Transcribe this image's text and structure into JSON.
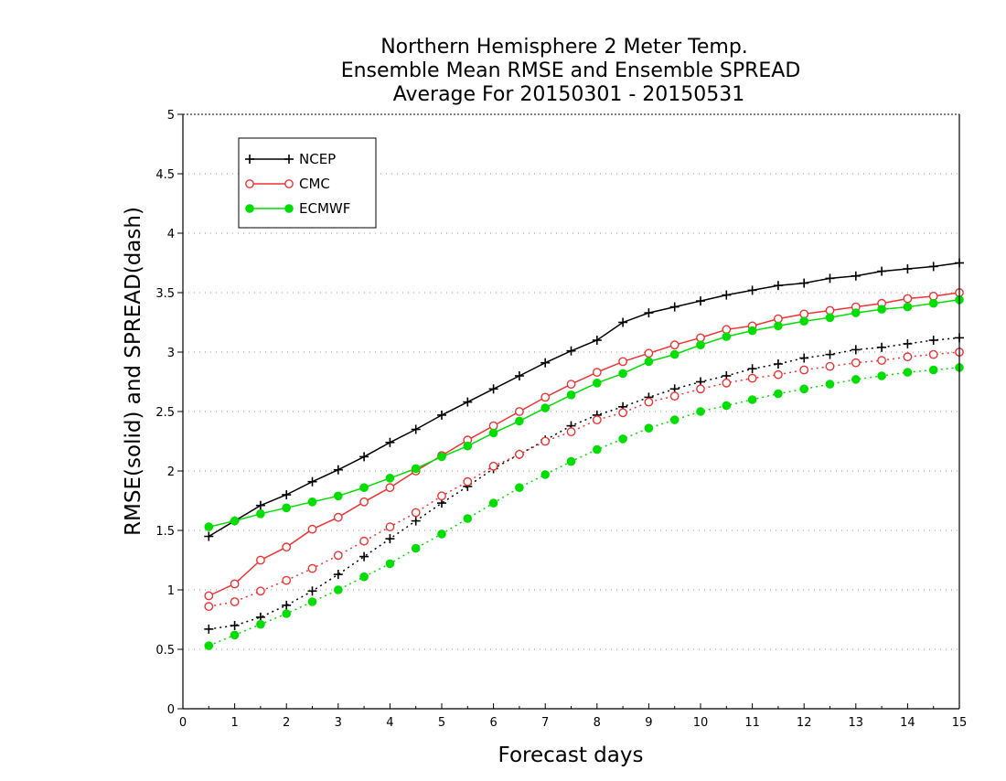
{
  "chart_data": {
    "type": "line",
    "title_lines": [
      "Northern Hemisphere 2 Meter Temp.",
      "Ensemble Mean RMSE and Ensemble SPREAD",
      "Average For 20150301 - 20150531"
    ],
    "xlabel": "Forecast days",
    "ylabel": "RMSE(solid) and SPREAD(dash)",
    "xlim": [
      0,
      15
    ],
    "ylim": [
      0,
      5
    ],
    "x_ticks": [
      "0",
      "1",
      "2",
      "3",
      "4",
      "5",
      "6",
      "7",
      "8",
      "9",
      "10",
      "11",
      "12",
      "13",
      "14",
      "15"
    ],
    "y_ticks": [
      "0",
      "0.5",
      "1",
      "1.5",
      "2",
      "2.5",
      "3",
      "3.5",
      "4",
      "4.5",
      "5"
    ],
    "grid": "horizontal dotted",
    "legend_position": "top-left",
    "x": [
      0.5,
      1,
      1.5,
      2,
      2.5,
      3,
      3.5,
      4,
      4.5,
      5,
      5.5,
      6,
      6.5,
      7,
      7.5,
      8,
      8.5,
      9,
      9.5,
      10,
      10.5,
      11,
      11.5,
      12,
      12.5,
      13,
      13.5,
      14,
      14.5,
      15
    ],
    "series": [
      {
        "name": "NCEP",
        "metric": "RMSE",
        "style": "solid",
        "marker": "plus",
        "color": "#000000",
        "values": [
          1.45,
          1.58,
          1.71,
          1.8,
          1.91,
          2.01,
          2.12,
          2.24,
          2.35,
          2.47,
          2.58,
          2.69,
          2.8,
          2.91,
          3.01,
          3.1,
          3.25,
          3.33,
          3.38,
          3.43,
          3.48,
          3.52,
          3.56,
          3.58,
          3.62,
          3.64,
          3.68,
          3.7,
          3.72,
          3.75
        ]
      },
      {
        "name": "CMC",
        "metric": "RMSE",
        "style": "solid",
        "marker": "open-circle",
        "color": "#ee3333",
        "values": [
          0.95,
          1.05,
          1.25,
          1.36,
          1.51,
          1.61,
          1.74,
          1.86,
          2.0,
          2.13,
          2.26,
          2.38,
          2.5,
          2.62,
          2.73,
          2.83,
          2.92,
          2.99,
          3.06,
          3.12,
          3.19,
          3.22,
          3.28,
          3.32,
          3.35,
          3.38,
          3.41,
          3.45,
          3.47,
          3.5
        ]
      },
      {
        "name": "ECMWF",
        "metric": "RMSE",
        "style": "solid",
        "marker": "filled-circle",
        "color": "#00dd00",
        "values": [
          1.53,
          1.58,
          1.64,
          1.69,
          1.74,
          1.79,
          1.86,
          1.94,
          2.02,
          2.12,
          2.21,
          2.32,
          2.42,
          2.53,
          2.64,
          2.74,
          2.82,
          2.92,
          2.98,
          3.06,
          3.13,
          3.18,
          3.22,
          3.26,
          3.29,
          3.33,
          3.36,
          3.38,
          3.41,
          3.44
        ]
      },
      {
        "name": "NCEP",
        "metric": "SPREAD",
        "style": "dash",
        "marker": "plus",
        "color": "#000000",
        "values": [
          0.67,
          0.7,
          0.77,
          0.87,
          0.99,
          1.13,
          1.28,
          1.43,
          1.58,
          1.73,
          1.87,
          2.02,
          2.14,
          2.26,
          2.38,
          2.47,
          2.54,
          2.62,
          2.69,
          2.75,
          2.8,
          2.86,
          2.9,
          2.95,
          2.98,
          3.02,
          3.04,
          3.07,
          3.1,
          3.12
        ]
      },
      {
        "name": "CMC",
        "metric": "SPREAD",
        "style": "dash",
        "marker": "open-circle",
        "color": "#ee3333",
        "values": [
          0.86,
          0.9,
          0.99,
          1.08,
          1.18,
          1.29,
          1.41,
          1.53,
          1.65,
          1.79,
          1.91,
          2.04,
          2.14,
          2.25,
          2.33,
          2.43,
          2.49,
          2.58,
          2.63,
          2.69,
          2.74,
          2.78,
          2.81,
          2.85,
          2.88,
          2.91,
          2.93,
          2.96,
          2.98,
          3.0
        ]
      },
      {
        "name": "ECMWF",
        "metric": "SPREAD",
        "style": "dash",
        "marker": "filled-circle",
        "color": "#00dd00",
        "values": [
          0.53,
          0.62,
          0.71,
          0.8,
          0.9,
          1.0,
          1.11,
          1.22,
          1.35,
          1.47,
          1.6,
          1.73,
          1.86,
          1.97,
          2.08,
          2.18,
          2.27,
          2.36,
          2.43,
          2.5,
          2.55,
          2.6,
          2.65,
          2.69,
          2.73,
          2.77,
          2.8,
          2.83,
          2.85,
          2.87
        ]
      }
    ],
    "legend": [
      {
        "name": "NCEP",
        "marker": "plus",
        "color": "#000000"
      },
      {
        "name": "CMC",
        "marker": "open-circle",
        "color": "#ee3333"
      },
      {
        "name": "ECMWF",
        "marker": "filled-circle",
        "color": "#00dd00"
      }
    ]
  }
}
